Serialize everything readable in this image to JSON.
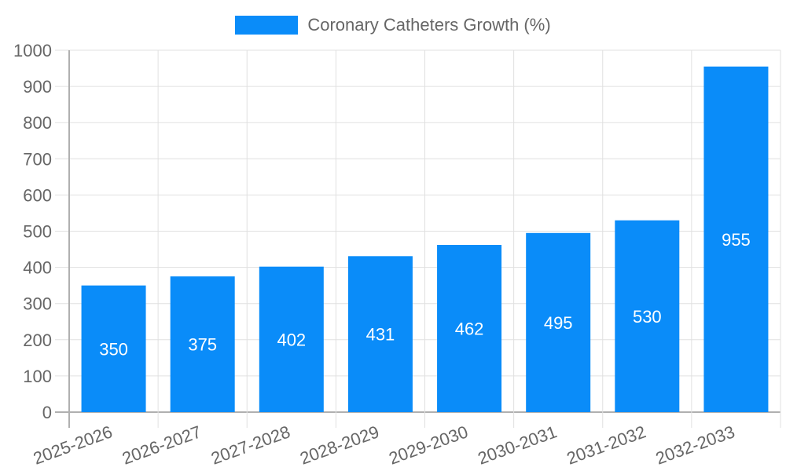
{
  "legend": {
    "label": "Coronary Catheters Growth (%)",
    "color": "#0a8cf9"
  },
  "chart_data": {
    "type": "bar",
    "title": "",
    "xlabel": "",
    "ylabel": "",
    "categories": [
      "2025-2026",
      "2026-2027",
      "2027-2028",
      "2028-2029",
      "2029-2030",
      "2030-2031",
      "2031-2032",
      "2032-2033"
    ],
    "series": [
      {
        "name": "Coronary Catheters Growth (%)",
        "values": [
          350,
          375,
          402,
          431,
          462,
          495,
          530,
          955
        ],
        "color": "#0a8cf9"
      }
    ],
    "ylim": [
      0,
      1000
    ],
    "yticks": [
      0,
      100,
      200,
      300,
      400,
      500,
      600,
      700,
      800,
      900,
      1000
    ],
    "grid": true,
    "legend_position": "top",
    "data_labels": true,
    "xtick_rotation": -20
  }
}
